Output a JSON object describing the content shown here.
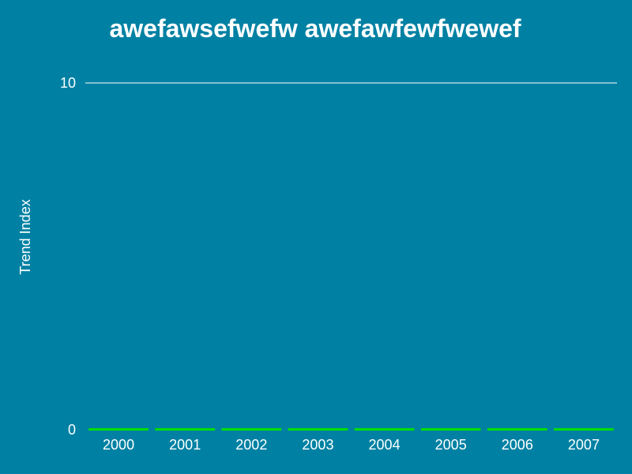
{
  "chart_data": {
    "type": "bar",
    "title": "awefawsefwefw awefawfewfwewef",
    "xlabel": "",
    "ylabel": "Trend Index",
    "categories": [
      "2000",
      "2001",
      "2002",
      "2003",
      "2004",
      "2005",
      "2006",
      "2007"
    ],
    "series": [
      {
        "values": [
          0,
          0,
          0,
          0,
          0,
          0,
          0,
          0
        ],
        "color": "#00e000"
      }
    ],
    "ylim": [
      0,
      10
    ],
    "y_ticks": [
      0,
      10
    ],
    "grid": true,
    "legend": "none"
  },
  "colors": {
    "background": "#0081a3",
    "text": "#ffffff",
    "grid": "#ffffff",
    "bar": "#00e000"
  }
}
